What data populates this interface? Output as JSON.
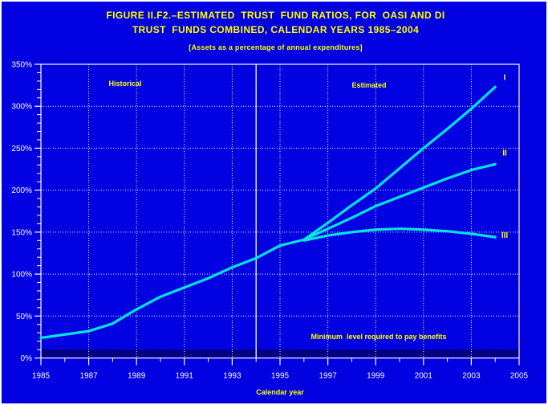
{
  "page": {
    "title_line1": "FIGURE II.F2.–ESTIMATED  TRUST  FUND RATIOS, FOR  OASI AND DI",
    "title_line2": "TRUST  FUNDS COMBINED, CALENDAR YEARS 1985–2004",
    "subtitle": "[Assets as a percentage of annual expenditures]"
  },
  "annotations": {
    "historical_label": "Historical",
    "estimated_label": "Estimated",
    "minimum_label": "Minimum  level required to pay benefits"
  },
  "colors": {
    "background": "#0000E0",
    "frame": "#FFFFFF",
    "curve": "#00E4E4",
    "grid": "#FFFFFF",
    "text_accent": "#FFFF00",
    "text_axis": "#FFFFFF",
    "minimum_band": "#000080"
  },
  "chart_data": {
    "type": "line",
    "title": "FIGURE II.F2.–ESTIMATED TRUST FUND RATIOS, FOR OASI AND DI TRUST FUNDS COMBINED, CALENDAR YEARS 1985–2004",
    "subtitle": "[Assets as a percentage of annual expenditures]",
    "xlabel": "Calendar year",
    "ylabel": "",
    "xlim": [
      1985,
      2005
    ],
    "ylim": [
      0,
      350
    ],
    "grid": true,
    "x_major_ticks": [
      1985,
      1987,
      1989,
      1991,
      1993,
      1995,
      1997,
      1999,
      2001,
      2003,
      2005
    ],
    "x_major_tick_labels": [
      "1985",
      "1987",
      "1989",
      "1991",
      "1993",
      "1995",
      "1997",
      "1999",
      "2001",
      "2003",
      "2005"
    ],
    "x_minor_ticks": [
      1986,
      1988,
      1990,
      1992,
      1994,
      1996,
      1998,
      2000,
      2002,
      2004
    ],
    "y_major_ticks": [
      0,
      50,
      100,
      150,
      200,
      250,
      300,
      350
    ],
    "y_major_tick_labels": [
      "0%",
      "50%",
      "100%",
      "150%",
      "200%",
      "250%",
      "300%",
      "350%"
    ],
    "y_minor_step": 10,
    "vertical_gridline_years": [
      1987,
      1989,
      1991,
      1993,
      1995,
      1997,
      1999,
      2001,
      2003
    ],
    "horizontal_gridline_values": [
      50,
      100,
      150,
      200,
      250,
      300
    ],
    "separator_year": 1994,
    "minimum_band": {
      "lower": 1,
      "upper": 10
    },
    "common_line": {
      "years": [
        1985,
        1986,
        1987,
        1988,
        1989,
        1990,
        1991,
        1992,
        1993,
        1994,
        1995,
        1996
      ],
      "values": [
        24,
        28,
        32,
        41,
        58,
        73,
        84,
        95,
        108,
        119,
        134,
        141
      ]
    },
    "series": [
      {
        "name": "I",
        "years": [
          1996,
          1997,
          1998,
          1999,
          2000,
          2001,
          2002,
          2003,
          2004
        ],
        "values": [
          141,
          161,
          182,
          202,
          226,
          250,
          273,
          297,
          323
        ],
        "label_value": 334
      },
      {
        "name": "II",
        "years": [
          1996,
          1997,
          1998,
          1999,
          2000,
          2001,
          2002,
          2003,
          2004
        ],
        "values": [
          141,
          154,
          167,
          181,
          192,
          203,
          214,
          224,
          231
        ],
        "label_value": 244
      },
      {
        "name": "III",
        "years": [
          1996,
          1997,
          1998,
          1999,
          2000,
          2001,
          2002,
          2003,
          2004
        ],
        "values": [
          140,
          146,
          150,
          153,
          154,
          153,
          151,
          148,
          144
        ],
        "label_value": 146
      }
    ]
  }
}
